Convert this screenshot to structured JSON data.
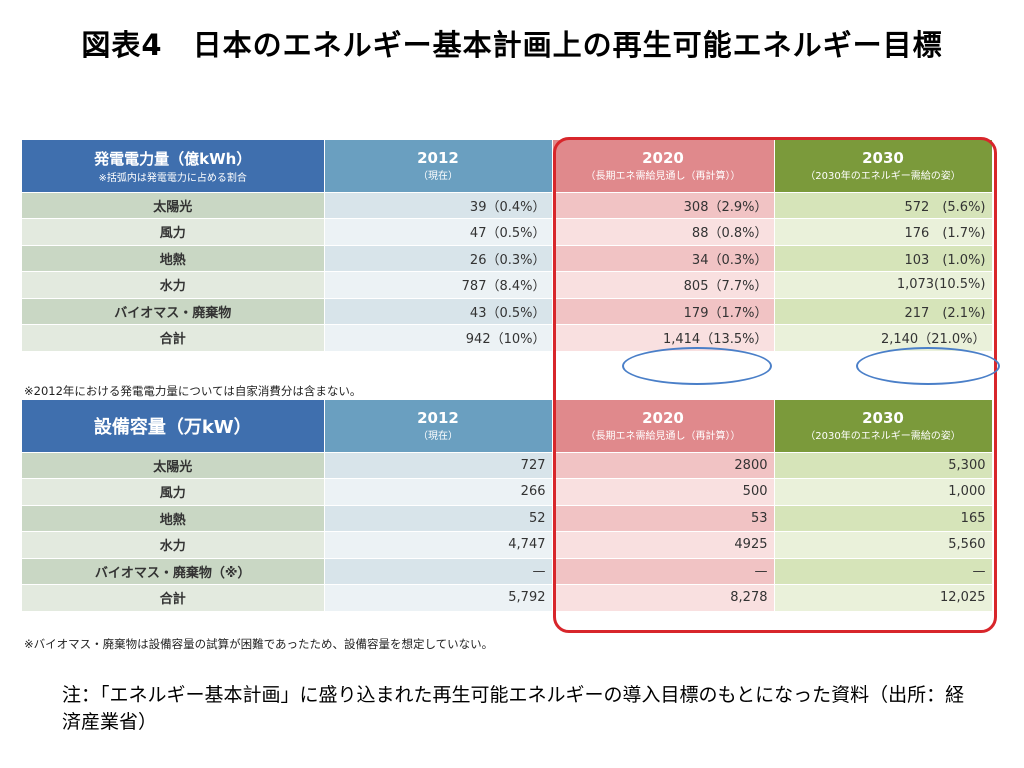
{
  "title": "図表4　日本のエネルギー基本計画上の再生可能エネルギー目標",
  "table1": {
    "headers": [
      {
        "main": "発電電力量（億kWh）",
        "sub": "※括弧内は発電電力に占める割合"
      },
      {
        "main": "2012",
        "sub": "（現在）"
      },
      {
        "main": "2020",
        "sub": "（長期エネ需給見通し（再計算））"
      },
      {
        "main": "2030",
        "sub": "（2030年のエネルギー需給の姿）"
      }
    ],
    "rows": [
      [
        "太陽光",
        "39（0.4%）",
        "308（2.9%）",
        "572　(5.6%)"
      ],
      [
        "風力",
        "47（0.5%）",
        "88（0.8%）",
        "176　(1.7%)"
      ],
      [
        "地熱",
        "26（0.3%）",
        "34（0.3%）",
        "103　(1.0%)"
      ],
      [
        "水力",
        "787（8.4%）",
        "805（7.7%）",
        "1,073(10.5%)"
      ],
      [
        "バイオマス・廃棄物",
        "43（0.5%）",
        "179（1.7%）",
        "217　(2.1%)"
      ],
      [
        "合計",
        "942（10%）",
        "1,414（13.5%）",
        "2,140（21.0%）"
      ]
    ],
    "note": "※2012年における発電電力量については自家消費分は含まない。"
  },
  "table2": {
    "headers": [
      {
        "main": "設備容量（万kW）",
        "sub": ""
      },
      {
        "main": "2012",
        "sub": "（現在）"
      },
      {
        "main": "2020",
        "sub": "（長期エネ需給見通し（再計算））"
      },
      {
        "main": "2030",
        "sub": "（2030年のエネルギー需給の姿）"
      }
    ],
    "rows": [
      [
        "太陽光",
        "727",
        "2800",
        "5,300"
      ],
      [
        "風力",
        "266",
        "500",
        "1,000"
      ],
      [
        "地熱",
        "52",
        "53",
        "165"
      ],
      [
        "水力",
        "4,747",
        "4925",
        "5,560"
      ],
      [
        "バイオマス・廃棄物（※）",
        "—",
        "—",
        "—"
      ],
      [
        "合計",
        "5,792",
        "8,278",
        "12,025"
      ]
    ],
    "note": "※バイオマス・廃棄物は設備容量の試算が困難であったため、設備容量を想定していない。"
  },
  "footer": "注：「エネルギー基本計画」に盛り込まれた再生可能エネルギーの導入目標のもとになった資料（出所：経済産業省）"
}
